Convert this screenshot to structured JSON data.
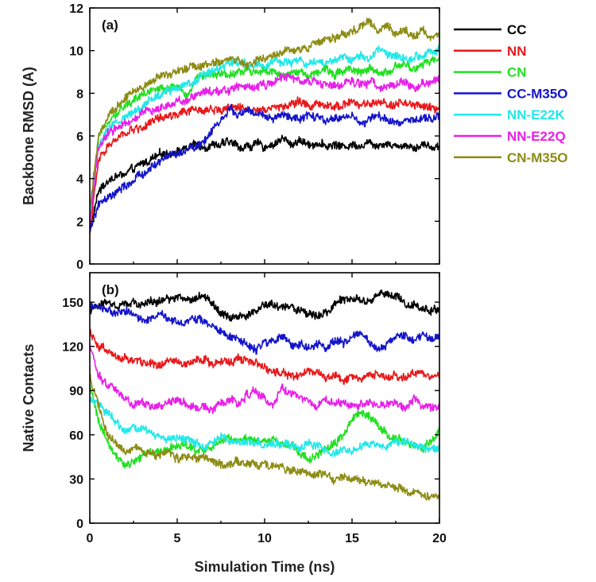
{
  "chart_data": [
    {
      "type": "line",
      "panel_label": "(a)",
      "ylabel": "Backbone RMSD (A)",
      "xlabel": "",
      "xlim": [
        0,
        20
      ],
      "ylim": [
        0,
        12
      ],
      "x_ticks": [
        0,
        5,
        10,
        15,
        20
      ],
      "y_ticks": [
        0,
        2,
        4,
        6,
        8,
        10,
        12
      ],
      "x_tick_labels": [
        "",
        "",
        "",
        "",
        ""
      ],
      "y_tick_labels": [
        "0",
        "2",
        "4",
        "6",
        "8",
        "10",
        "12"
      ],
      "x": [
        0,
        0.5,
        1,
        1.5,
        2,
        2.5,
        3,
        3.5,
        4,
        4.5,
        5,
        5.5,
        6,
        6.5,
        7,
        7.5,
        8,
        8.5,
        9,
        9.5,
        10,
        10.5,
        11,
        11.5,
        12,
        12.5,
        13,
        13.5,
        14,
        14.5,
        15,
        15.5,
        16,
        16.5,
        17,
        17.5,
        18,
        18.5,
        19,
        19.5,
        20
      ],
      "series": [
        {
          "name": "CC",
          "color": "#000000",
          "values": [
            1.5,
            3.4,
            3.9,
            4.1,
            4.2,
            4.4,
            4.7,
            4.9,
            5.1,
            5.2,
            5.3,
            5.4,
            5.6,
            5.5,
            5.6,
            5.6,
            5.7,
            5.5,
            5.5,
            5.6,
            5.5,
            5.6,
            5.9,
            5.6,
            5.8,
            5.6,
            5.7,
            5.5,
            5.6,
            5.5,
            5.6,
            5.6,
            5.7,
            5.6,
            5.7,
            5.5,
            5.6,
            5.5,
            5.6,
            5.5,
            5.5
          ]
        },
        {
          "name": "NN",
          "color": "#e8191b",
          "values": [
            1.5,
            4.8,
            5.5,
            5.8,
            6.1,
            6.3,
            6.4,
            6.6,
            6.8,
            6.9,
            7.0,
            7.1,
            7.2,
            7.2,
            7.3,
            7.2,
            7.4,
            7.3,
            7.2,
            7.3,
            7.3,
            7.4,
            7.3,
            7.5,
            7.6,
            7.4,
            7.5,
            7.3,
            7.4,
            7.5,
            7.6,
            7.4,
            7.5,
            7.5,
            7.4,
            7.6,
            7.5,
            7.4,
            7.4,
            7.3,
            7.3
          ]
        },
        {
          "name": "CN",
          "color": "#22e022",
          "values": [
            2.0,
            5.8,
            6.7,
            7.1,
            7.4,
            7.7,
            7.9,
            8.1,
            8.3,
            8.2,
            8.4,
            7.8,
            8.6,
            8.8,
            8.9,
            9.0,
            8.9,
            9.0,
            9.1,
            9.0,
            9.1,
            9.0,
            8.7,
            8.9,
            9.0,
            8.9,
            9.0,
            9.1,
            8.9,
            9.1,
            9.2,
            9.0,
            9.1,
            8.9,
            9.0,
            9.2,
            9.3,
            9.1,
            9.3,
            9.5,
            9.6
          ]
        },
        {
          "name": "CC-M35O",
          "color": "#1414cc",
          "values": [
            1.5,
            2.8,
            3.0,
            3.3,
            3.6,
            3.9,
            4.2,
            4.5,
            4.8,
            5.1,
            5.1,
            5.3,
            5.5,
            5.7,
            6.3,
            6.8,
            7.2,
            7.0,
            7.2,
            7.0,
            6.9,
            6.8,
            7.0,
            6.9,
            6.7,
            7.0,
            6.8,
            6.7,
            6.8,
            6.9,
            7.0,
            6.5,
            6.8,
            6.9,
            6.7,
            6.6,
            6.8,
            6.8,
            6.7,
            6.8,
            7.0
          ]
        },
        {
          "name": "NN-E22K",
          "color": "#22e8e8",
          "values": [
            2.2,
            5.6,
            6.2,
            6.6,
            6.9,
            7.1,
            7.4,
            7.7,
            7.9,
            8.1,
            8.3,
            8.5,
            8.6,
            8.9,
            9.1,
            9.3,
            9.4,
            9.5,
            9.4,
            9.4,
            9.3,
            9.5,
            9.4,
            9.4,
            9.6,
            9.3,
            9.5,
            9.4,
            9.6,
            9.7,
            9.5,
            9.8,
            9.6,
            10.1,
            9.9,
            9.8,
            9.6,
            9.7,
            9.8,
            9.9,
            10.0
          ]
        },
        {
          "name": "NN-E22Q",
          "color": "#e820e8",
          "values": [
            1.8,
            5.5,
            6.1,
            6.4,
            6.6,
            6.8,
            7.1,
            7.2,
            7.3,
            7.5,
            7.6,
            7.7,
            7.9,
            8.0,
            8.1,
            8.1,
            8.2,
            8.3,
            8.4,
            8.3,
            8.4,
            8.5,
            8.7,
            8.8,
            8.5,
            8.6,
            8.5,
            8.3,
            8.4,
            8.3,
            8.5,
            8.4,
            8.5,
            8.3,
            8.4,
            8.4,
            8.5,
            8.3,
            8.4,
            8.5,
            8.7
          ]
        },
        {
          "name": "CN-M35O",
          "color": "#8c8c14",
          "values": [
            2.5,
            6.0,
            6.8,
            7.3,
            7.7,
            8.0,
            8.3,
            8.5,
            8.8,
            8.9,
            9.0,
            9.1,
            9.3,
            9.3,
            9.4,
            9.5,
            9.6,
            9.5,
            9.3,
            9.6,
            9.7,
            9.8,
            9.9,
            10.0,
            10.1,
            10.2,
            10.3,
            10.5,
            10.6,
            10.7,
            10.9,
            11.1,
            11.3,
            11.0,
            11.2,
            10.8,
            11.0,
            10.7,
            11.0,
            10.6,
            10.7
          ]
        }
      ]
    },
    {
      "type": "line",
      "panel_label": "(b)",
      "ylabel": "Native Contacts",
      "xlabel": "Simulation Time (ns)",
      "xlim": [
        0,
        20
      ],
      "ylim": [
        0,
        170
      ],
      "x_ticks": [
        0,
        5,
        10,
        15,
        20
      ],
      "y_ticks": [
        0,
        30,
        60,
        90,
        120,
        150
      ],
      "x_tick_labels": [
        "0",
        "5",
        "10",
        "15",
        "20"
      ],
      "y_tick_labels": [
        "0",
        "30",
        "60",
        "90",
        "120",
        "150"
      ],
      "x": [
        0,
        0.5,
        1,
        1.5,
        2,
        2.5,
        3,
        3.5,
        4,
        4.5,
        5,
        5.5,
        6,
        6.5,
        7,
        7.5,
        8,
        8.5,
        9,
        9.5,
        10,
        10.5,
        11,
        11.5,
        12,
        12.5,
        13,
        13.5,
        14,
        14.5,
        15,
        15.5,
        16,
        16.5,
        17,
        17.5,
        18,
        18.5,
        19,
        19.5,
        20
      ],
      "series": [
        {
          "name": "CC",
          "color": "#000000",
          "values": [
            145,
            148,
            150,
            147,
            149,
            150,
            148,
            151,
            150,
            152,
            153,
            151,
            152,
            155,
            150,
            143,
            138,
            140,
            142,
            145,
            150,
            148,
            146,
            148,
            144,
            142,
            140,
            143,
            148,
            152,
            153,
            150,
            151,
            155,
            157,
            155,
            150,
            148,
            146,
            145,
            146
          ]
        },
        {
          "name": "NN",
          "color": "#e8191b",
          "values": [
            130,
            120,
            118,
            112,
            113,
            110,
            108,
            110,
            107,
            111,
            110,
            108,
            110,
            112,
            108,
            110,
            107,
            112,
            110,
            108,
            106,
            104,
            102,
            101,
            99,
            103,
            102,
            98,
            100,
            97,
            100,
            99,
            102,
            101,
            99,
            100,
            98,
            102,
            101,
            100,
            100
          ]
        },
        {
          "name": "CN",
          "color": "#22e022",
          "values": [
            95,
            70,
            55,
            45,
            40,
            42,
            45,
            48,
            47,
            50,
            52,
            53,
            50,
            48,
            52,
            55,
            57,
            55,
            58,
            56,
            55,
            57,
            52,
            54,
            48,
            42,
            45,
            50,
            55,
            60,
            70,
            75,
            72,
            65,
            60,
            58,
            55,
            52,
            50,
            55,
            63
          ]
        },
        {
          "name": "CC-M35O",
          "color": "#1414cc",
          "values": [
            148,
            147,
            145,
            143,
            145,
            142,
            140,
            139,
            141,
            138,
            135,
            136,
            140,
            137,
            135,
            130,
            128,
            126,
            120,
            118,
            122,
            124,
            126,
            120,
            121,
            118,
            122,
            120,
            125,
            123,
            127,
            130,
            124,
            118,
            120,
            126,
            128,
            124,
            128,
            125,
            128
          ]
        },
        {
          "name": "NN-E22K",
          "color": "#22e8e8",
          "values": [
            85,
            80,
            75,
            70,
            62,
            66,
            65,
            60,
            58,
            56,
            57,
            58,
            55,
            52,
            55,
            58,
            55,
            57,
            56,
            54,
            52,
            55,
            53,
            52,
            50,
            55,
            52,
            50,
            48,
            50,
            49,
            52,
            54,
            52,
            50,
            55,
            56,
            54,
            52,
            50,
            53
          ]
        },
        {
          "name": "NN-E22Q",
          "color": "#e820e8",
          "values": [
            120,
            100,
            95,
            90,
            85,
            80,
            82,
            78,
            80,
            82,
            85,
            80,
            78,
            80,
            77,
            82,
            85,
            80,
            88,
            90,
            85,
            80,
            92,
            88,
            85,
            82,
            78,
            84,
            80,
            82,
            78,
            80,
            82,
            79,
            80,
            82,
            78,
            84,
            80,
            79,
            80
          ]
        },
        {
          "name": "CN-M35O",
          "color": "#8c8c14",
          "values": [
            100,
            80,
            60,
            55,
            50,
            52,
            48,
            47,
            46,
            48,
            45,
            44,
            43,
            45,
            42,
            41,
            40,
            42,
            40,
            38,
            40,
            38,
            37,
            36,
            34,
            35,
            33,
            34,
            30,
            32,
            30,
            28,
            28,
            26,
            25,
            25,
            23,
            22,
            20,
            18,
            17
          ]
        }
      ]
    }
  ],
  "legend": {
    "items": [
      {
        "name": "CC",
        "color": "#000000"
      },
      {
        "name": "NN",
        "color": "#e8191b"
      },
      {
        "name": "CN",
        "color": "#22e022"
      },
      {
        "name": "CC-M35O",
        "color": "#1414cc"
      },
      {
        "name": "NN-E22K",
        "color": "#22e8e8"
      },
      {
        "name": "NN-E22Q",
        "color": "#e820e8"
      },
      {
        "name": "CN-M35O",
        "color": "#8c8c14"
      }
    ]
  }
}
